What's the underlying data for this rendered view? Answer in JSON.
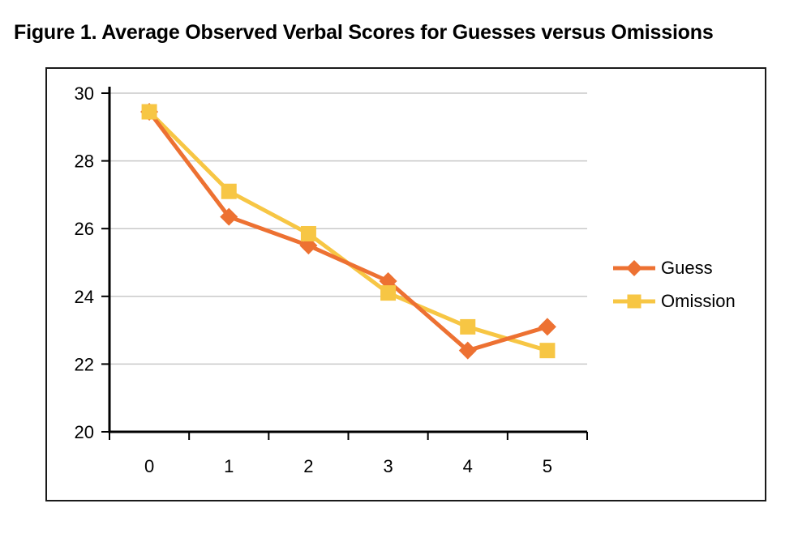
{
  "figure": {
    "title": "Figure 1. Average Observed Verbal Scores for Guesses versus Omissions"
  },
  "chart_data": {
    "type": "line",
    "x": [
      0,
      1,
      2,
      3,
      4,
      5
    ],
    "xtick_labels": [
      "0",
      "1",
      "2",
      "3",
      "4",
      "5"
    ],
    "series": [
      {
        "name": "Guess",
        "marker": "diamond",
        "color": "#ED7132",
        "values": [
          29.45,
          26.35,
          25.5,
          24.45,
          22.4,
          23.1
        ]
      },
      {
        "name": "Omission",
        "marker": "square",
        "color": "#F7C644",
        "values": [
          29.45,
          27.1,
          25.85,
          24.1,
          23.1,
          22.4
        ]
      }
    ],
    "title": "",
    "xlabel": "",
    "ylabel": "",
    "ylim": [
      20,
      30
    ],
    "yticks": [
      20,
      22,
      24,
      26,
      28,
      30
    ],
    "ytick_labels": [
      "20",
      "22",
      "24",
      "26",
      "28",
      "30"
    ],
    "grid": "horizontal",
    "gridline_color": "#C9C9C9",
    "axis_color": "#000000",
    "text_color": "#000000",
    "legend_position": "right-inside"
  }
}
